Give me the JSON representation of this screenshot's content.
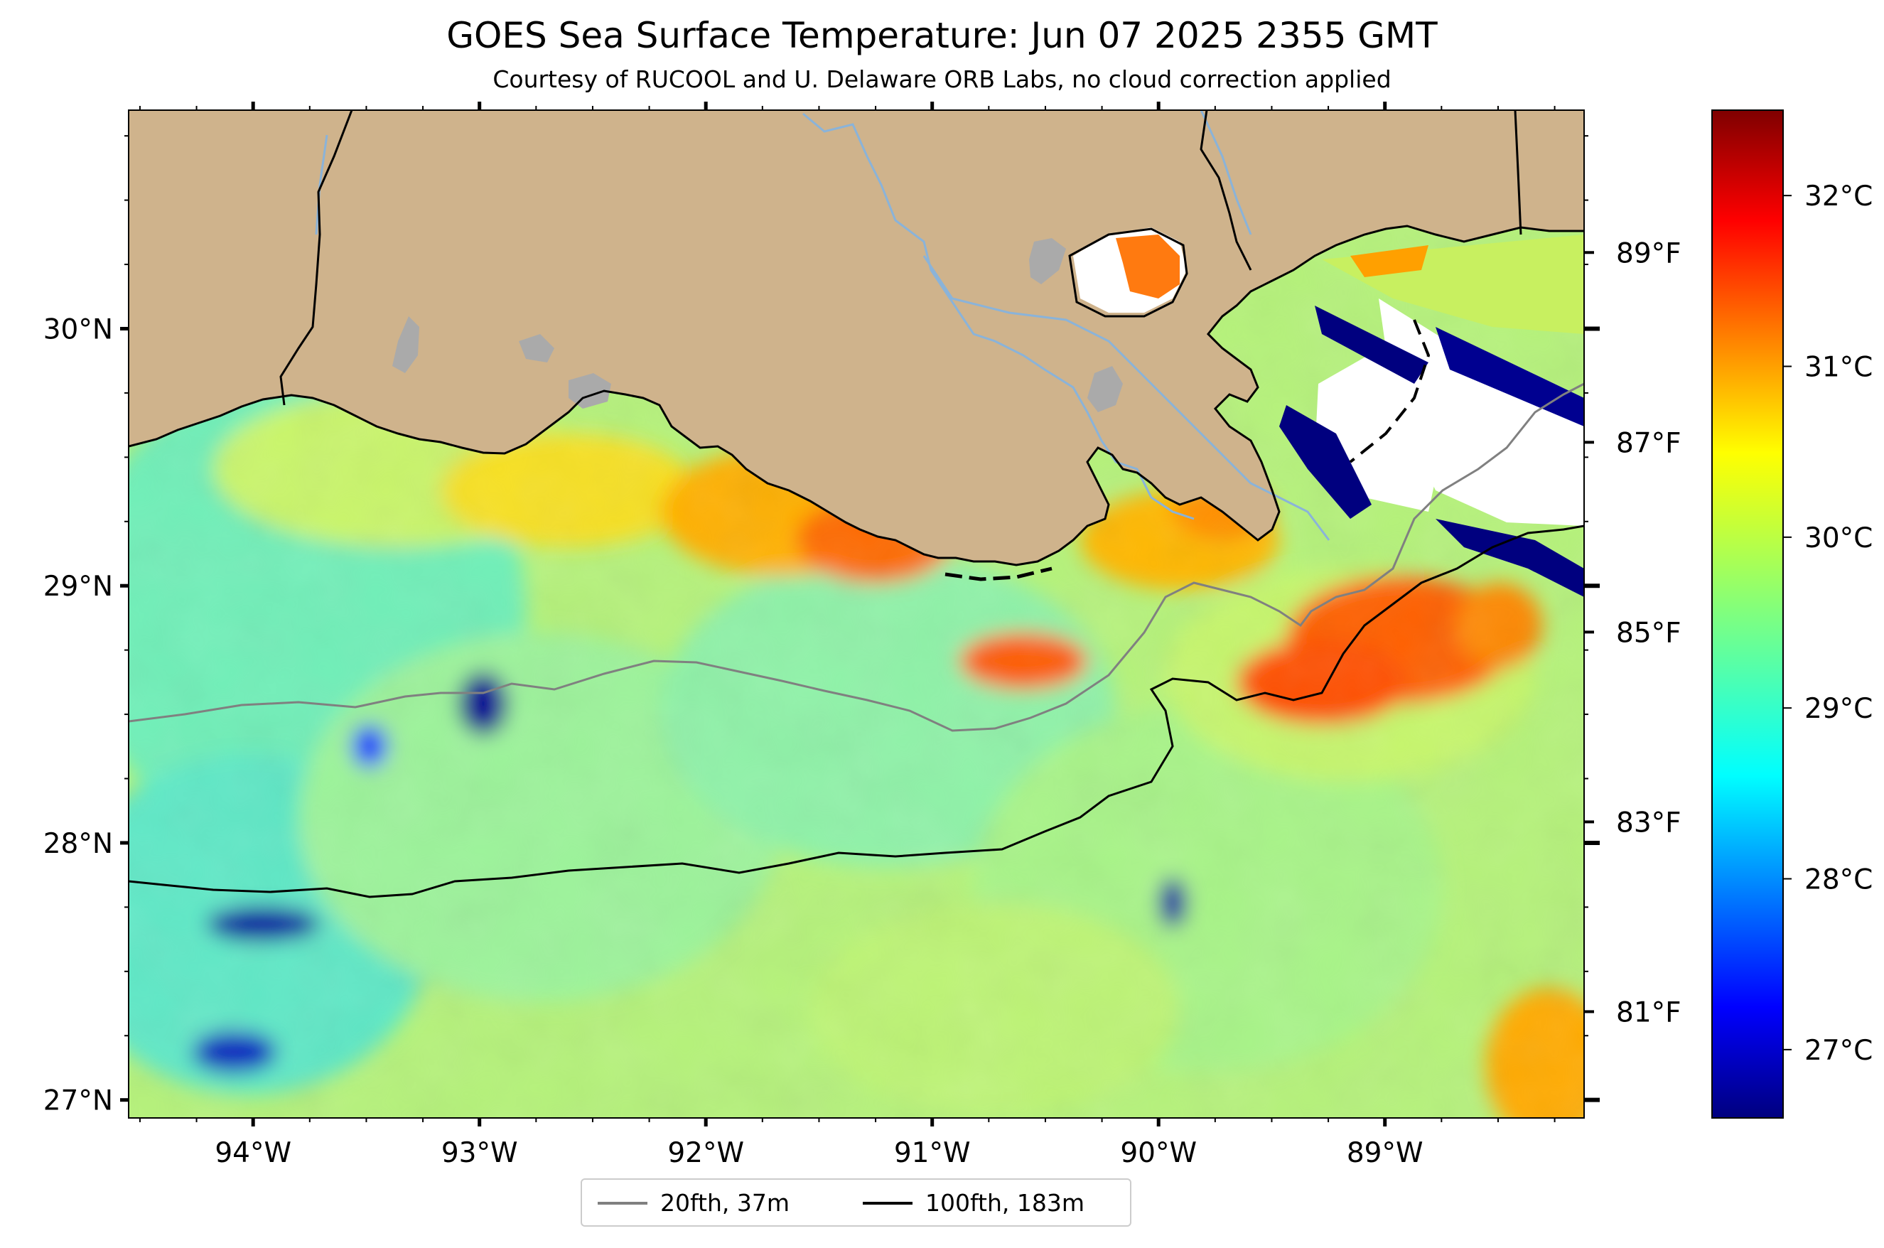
{
  "header": {
    "title": "GOES Sea Surface Temperature: Jun 07 2025 2355 GMT",
    "subtitle": "Courtesy of RUCOOL and U. Delaware ORB Labs, no cloud correction applied"
  },
  "map": {
    "lon_range": [
      -94.55,
      -88.12
    ],
    "lat_range": [
      26.93,
      30.85
    ],
    "lon_ticks": [
      {
        "lon": -94,
        "label": "94°W"
      },
      {
        "lon": -93,
        "label": "93°W"
      },
      {
        "lon": -92,
        "label": "92°W"
      },
      {
        "lon": -91,
        "label": "91°W"
      },
      {
        "lon": -90,
        "label": "90°W"
      },
      {
        "lon": -89,
        "label": "89°W"
      }
    ],
    "lat_ticks": [
      {
        "lat": 30,
        "label": "30°N"
      },
      {
        "lat": 29,
        "label": "29°N"
      },
      {
        "lat": 28,
        "label": "28°N"
      },
      {
        "lat": 27,
        "label": "27°N"
      }
    ],
    "colors": {
      "land": "#cfb38c",
      "lakes": "#aaaaaa",
      "rivers": "#8ab3d9",
      "contour_20fth": "#808080",
      "contour_100fth": "#000000"
    }
  },
  "legend": {
    "items": [
      {
        "label": "20fth, 37m",
        "color": "#808080"
      },
      {
        "label": "100fth, 183m",
        "color": "#000000"
      }
    ]
  },
  "colorbar": {
    "colormap": "jet",
    "celsius_range": [
      26.6,
      32.5
    ],
    "celsius_ticks": [
      {
        "value": 27,
        "label": "27°C"
      },
      {
        "value": 28,
        "label": "28°C"
      },
      {
        "value": 29,
        "label": "29°C"
      },
      {
        "value": 30,
        "label": "30°C"
      },
      {
        "value": 31,
        "label": "31°C"
      },
      {
        "value": 32,
        "label": "32°C"
      }
    ],
    "fahrenheit_ticks": [
      {
        "value": 81,
        "label": "81°F"
      },
      {
        "value": 83,
        "label": "83°F"
      },
      {
        "value": 85,
        "label": "85°F"
      },
      {
        "value": 87,
        "label": "87°F"
      },
      {
        "value": 89,
        "label": "89°F"
      }
    ]
  }
}
